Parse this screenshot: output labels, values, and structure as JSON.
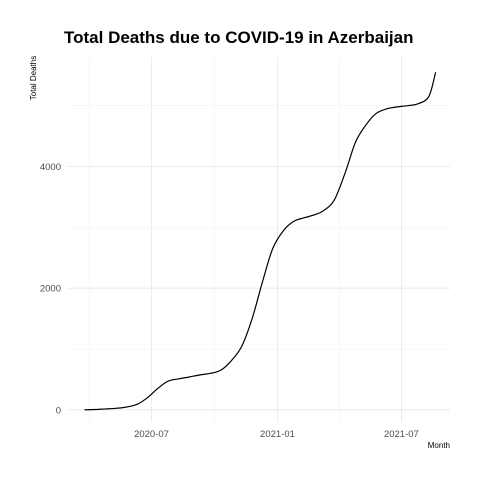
{
  "chart_data": {
    "type": "line",
    "title": "Total Deaths due to COVID-19 in Azerbaijan",
    "xlabel": "Month",
    "ylabel": "Total Deaths",
    "x_type": "date",
    "xlim": [
      "2020-03-01",
      "2021-09-10"
    ],
    "ylim": [
      -200,
      5800
    ],
    "x_ticks": [
      {
        "value": "2020-07-01",
        "label": "2020-07"
      },
      {
        "value": "2021-01-01",
        "label": "2021-01"
      },
      {
        "value": "2021-07-01",
        "label": "2021-07"
      }
    ],
    "x_minor_ticks": [
      "2020-04-01",
      "2020-10-01",
      "2021-04-01"
    ],
    "y_ticks": [
      0,
      2000,
      4000
    ],
    "y_minor_ticks": [
      1000,
      3000,
      5000
    ],
    "grid": true,
    "legend": "none",
    "series": [
      {
        "color": "#000000",
        "points": [
          [
            "2020-03-25",
            0
          ],
          [
            "2020-04-10",
            5
          ],
          [
            "2020-04-25",
            15
          ],
          [
            "2020-05-10",
            25
          ],
          [
            "2020-05-25",
            45
          ],
          [
            "2020-06-10",
            90
          ],
          [
            "2020-06-25",
            200
          ],
          [
            "2020-07-10",
            350
          ],
          [
            "2020-07-25",
            470
          ],
          [
            "2020-08-10",
            510
          ],
          [
            "2020-08-25",
            540
          ],
          [
            "2020-09-10",
            575
          ],
          [
            "2020-09-25",
            600
          ],
          [
            "2020-10-10",
            650
          ],
          [
            "2020-10-25",
            800
          ],
          [
            "2020-11-10",
            1050
          ],
          [
            "2020-11-25",
            1500
          ],
          [
            "2020-12-10",
            2100
          ],
          [
            "2020-12-25",
            2650
          ],
          [
            "2021-01-10",
            2950
          ],
          [
            "2021-01-25",
            3100
          ],
          [
            "2021-02-10",
            3160
          ],
          [
            "2021-02-25",
            3210
          ],
          [
            "2021-03-10",
            3280
          ],
          [
            "2021-03-25",
            3450
          ],
          [
            "2021-04-10",
            3900
          ],
          [
            "2021-04-25",
            4400
          ],
          [
            "2021-05-10",
            4680
          ],
          [
            "2021-05-25",
            4870
          ],
          [
            "2021-06-10",
            4950
          ],
          [
            "2021-06-25",
            4980
          ],
          [
            "2021-07-10",
            5000
          ],
          [
            "2021-07-25",
            5030
          ],
          [
            "2021-08-10",
            5150
          ],
          [
            "2021-08-20",
            5550
          ]
        ]
      }
    ]
  }
}
